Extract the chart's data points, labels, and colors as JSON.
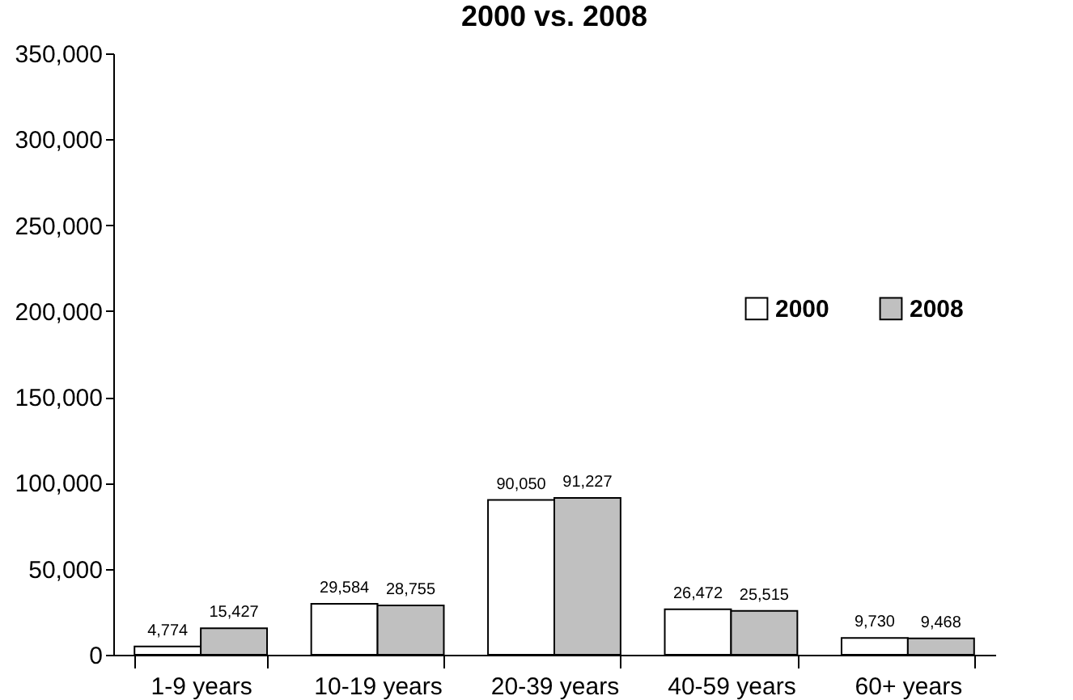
{
  "chart_data": {
    "type": "bar",
    "title": "2000 vs. 2008",
    "categories": [
      "1-9 years",
      "10-19 years",
      "20-39 years",
      "40-59 years",
      "60+ years"
    ],
    "series": [
      {
        "name": "2000",
        "color": "#ffffff",
        "values": [
          4774,
          29584,
          90050,
          26472,
          9730
        ],
        "value_labels": [
          "4,774",
          "29,584",
          "90,050",
          "26,472",
          "9,730"
        ]
      },
      {
        "name": "2008",
        "color": "#c0c0c0",
        "values": [
          15427,
          28755,
          91227,
          25515,
          9468
        ],
        "value_labels": [
          "15,427",
          "28,755",
          "91,227",
          "25,515",
          "9,468"
        ]
      }
    ],
    "ylim": [
      0,
      350000
    ],
    "yticks": [
      0,
      {
        "value": 50000,
        "label": "50,000"
      },
      {
        "value": 100000,
        "label": "100,000"
      },
      {
        "value": 150000,
        "label": "150,000"
      },
      {
        "value": 200000,
        "label": "200,000"
      },
      {
        "value": 250000,
        "label": "250,000"
      },
      {
        "value": 300000,
        "label": "300,000"
      },
      {
        "value": 350000,
        "label": "350,000"
      }
    ],
    "grid": false,
    "legend": "top right"
  }
}
